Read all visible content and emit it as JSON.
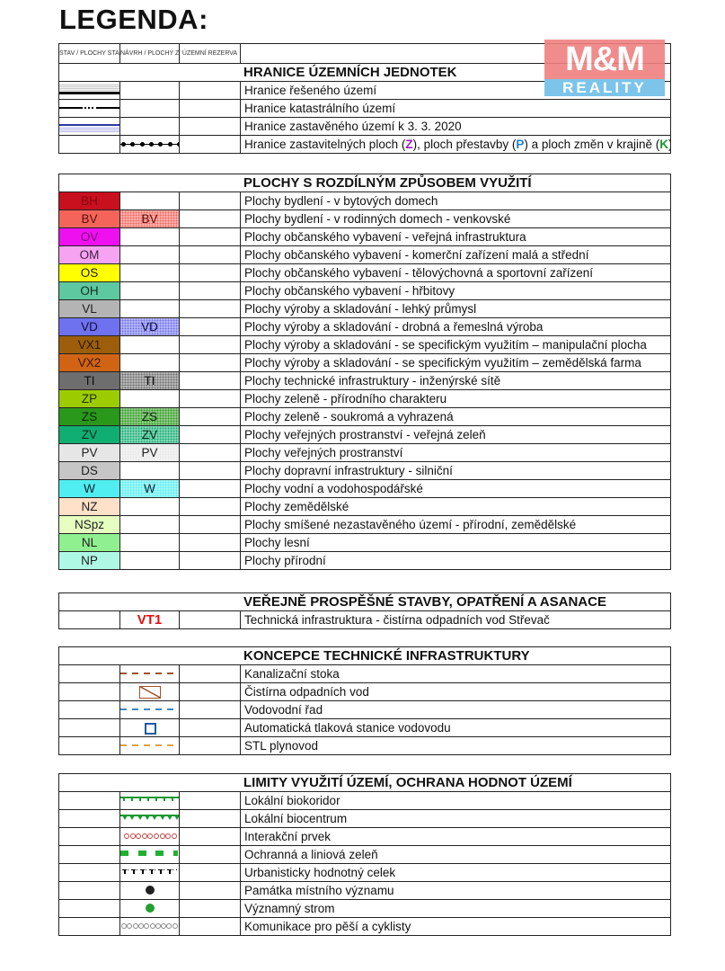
{
  "title": "LEGENDA:",
  "logo": {
    "top": "M&M",
    "bottom": "REALITY"
  },
  "column_headers": [
    "STAV / PLOCHY STABILIZOVANÉ",
    "NÁVRH / PLOCHY ZMĚN",
    "ÚZEMNÍ REZERVA"
  ],
  "sections": [
    {
      "title": "HRANICE ÚZEMNÍCH JEDNOTEK",
      "rows": [
        {
          "sym1": "thick-boundary-line",
          "text": "Hranice řešeného území"
        },
        {
          "sym1": "dash-dot-line",
          "text": "Hranice katastrálního území"
        },
        {
          "sym1": "blue-boundary-line",
          "text": "Hranice zastavěného území k 3. 3. 2020"
        },
        {
          "sym2": "dotted-line",
          "parts": [
            {
              "t": "Hranice zastavitelných ploch ("
            },
            {
              "t": "Z",
              "c": "#9b1fc0"
            },
            {
              "t": "), ploch přestavby ("
            },
            {
              "t": "P",
              "c": "#1e7fd0"
            },
            {
              "t": ") a ploch změn v krajině ("
            },
            {
              "t": "K",
              "c": "#1a9a30"
            },
            {
              "t": ")"
            }
          ]
        }
      ]
    },
    {
      "title": "PLOCHY S ROZDÍLNÝM ZPŮSOBEM VYUŽITÍ",
      "rows": [
        {
          "code": "BH",
          "color": "#c8101e",
          "fg": "#8a0010",
          "text": "Plochy bydlení - v bytových domech"
        },
        {
          "code": "BV",
          "color": "#f4645a",
          "fg": "#5a1010",
          "code2": true,
          "text": "Plochy bydlení - v rodinných domech - venkovské"
        },
        {
          "code": "OV",
          "color": "#ee10ee",
          "fg": "#800080",
          "text": "Plochy občanského vybavení - veřejná infrastruktura"
        },
        {
          "code": "OM",
          "color": "#f6a4f2",
          "fg": "#402040",
          "text": "Plochy občanského vybavení - komerční zařízení malá a střední"
        },
        {
          "code": "OS",
          "color": "#ffff00",
          "fg": "#202020",
          "text": "Plochy občanského vybavení - tělovýchovná a sportovní zařízení"
        },
        {
          "code": "OH",
          "color": "#5ec8a0",
          "fg": "#103020",
          "text": "Plochy občanského vybavení - hřbitovy"
        },
        {
          "code": "VL",
          "color": "#b4b4b4",
          "fg": "#202020",
          "text": "Plochy výroby a skladování - lehký průmysl"
        },
        {
          "code": "VD",
          "color": "#6f72ee",
          "fg": "#101040",
          "code2": true,
          "text": "Plochy výroby a skladování - drobná a řemeslná výroba"
        },
        {
          "code": "VX1",
          "color": "#9c5e0a",
          "fg": "#2a1800",
          "text": "Plochy výroby a skladování - se specifickým využitím – manipulační plocha"
        },
        {
          "code": "VX2",
          "color": "#d06414",
          "fg": "#3a1800",
          "text": "Plochy výroby a skladování - se specifickým využitím – zemědělská farma"
        },
        {
          "code": "TI",
          "color": "#6e6e6e",
          "fg": "#101010",
          "code2": true,
          "text": "Plochy technické infrastruktury - inženýrské sítě"
        },
        {
          "code": "ZP",
          "color": "#9ccc00",
          "fg": "#203000",
          "text": "Plochy zeleně - přírodního charakteru"
        },
        {
          "code": "ZS",
          "color": "#2a981a",
          "fg": "#0a2a0a",
          "code2": true,
          "text": "Plochy zeleně - soukromá a vyhrazená"
        },
        {
          "code": "ZV",
          "color": "#10ae72",
          "fg": "#0a2a1a",
          "code2": true,
          "text": "Plochy veřejných prostranství - veřejná zeleň"
        },
        {
          "code": "PV",
          "color": "#e6e6e6",
          "fg": "#202020",
          "code2": true,
          "text": "Plochy veřejných prostranství"
        },
        {
          "code": "DS",
          "color": "#c6c6c6",
          "fg": "#202020",
          "text": "Plochy dopravní infrastruktury - silniční"
        },
        {
          "code": "W",
          "color": "#50eef0",
          "fg": "#102030",
          "code2": true,
          "text": "Plochy vodní a vodohospodářské"
        },
        {
          "code": "NZ",
          "color": "#ffe0c8",
          "fg": "#202020",
          "text": "Plochy zemědělské"
        },
        {
          "code": "NSpz",
          "color": "#e6ffc0",
          "fg": "#202020",
          "text": "Plochy smíšené nezastavěného území - přírodní, zemědělské"
        },
        {
          "code": "NL",
          "color": "#90f090",
          "fg": "#202020",
          "text": "Plochy lesní"
        },
        {
          "code": "NP",
          "color": "#b0f8e6",
          "fg": "#202020",
          "text": "Plochy přírodní"
        }
      ]
    },
    {
      "title": "VEŘEJNĚ PROSPĚŠNÉ STAVBY, OPATŘENÍ A ASANACE",
      "rows": [
        {
          "label2": "VT1",
          "text": "Technická infrastruktura - čistírna odpadních vod Střevač"
        }
      ]
    },
    {
      "title": "KONCEPCE TECHNICKÉ INFRASTRUKTURY",
      "rows": [
        {
          "sym2": "brown-dashed-line",
          "text": "Kanalizační stoka"
        },
        {
          "sym2": "wastewater-plant-icon",
          "text": "Čistírna odpadních vod"
        },
        {
          "sym2": "blue-dashed-line",
          "text": "Vodovodní řad"
        },
        {
          "sym2": "blue-square-icon",
          "text": "Automatická tlaková stanice vodovodu"
        },
        {
          "sym2": "orange-dashed-line",
          "text": "STL plynovod"
        }
      ]
    },
    {
      "title": "LIMITY VYUŽITÍ ÚZEMÍ, OCHRANA HODNOT ÚZEMÍ",
      "rows": [
        {
          "sym2": "green-tick-line",
          "text": "Lokální biokoridor"
        },
        {
          "sym2": "green-triangle-line",
          "text": "Lokální biocentrum"
        },
        {
          "sym2": "red-circle-chain",
          "text": "Interakční prvek"
        },
        {
          "sym2": "green-block-dashes",
          "text": "Ochranná a liniová zeleň"
        },
        {
          "sym2": "black-tick-marks",
          "text": "Urbanisticky hodnotný celek"
        },
        {
          "sym2": "black-dot-icon",
          "text": "Památka místního významu"
        },
        {
          "sym2": "green-dot-icon",
          "text": "Významný strom"
        },
        {
          "sym2": "grey-circle-chain",
          "text": "Komunikace pro pěší a cyklisty"
        }
      ]
    }
  ]
}
